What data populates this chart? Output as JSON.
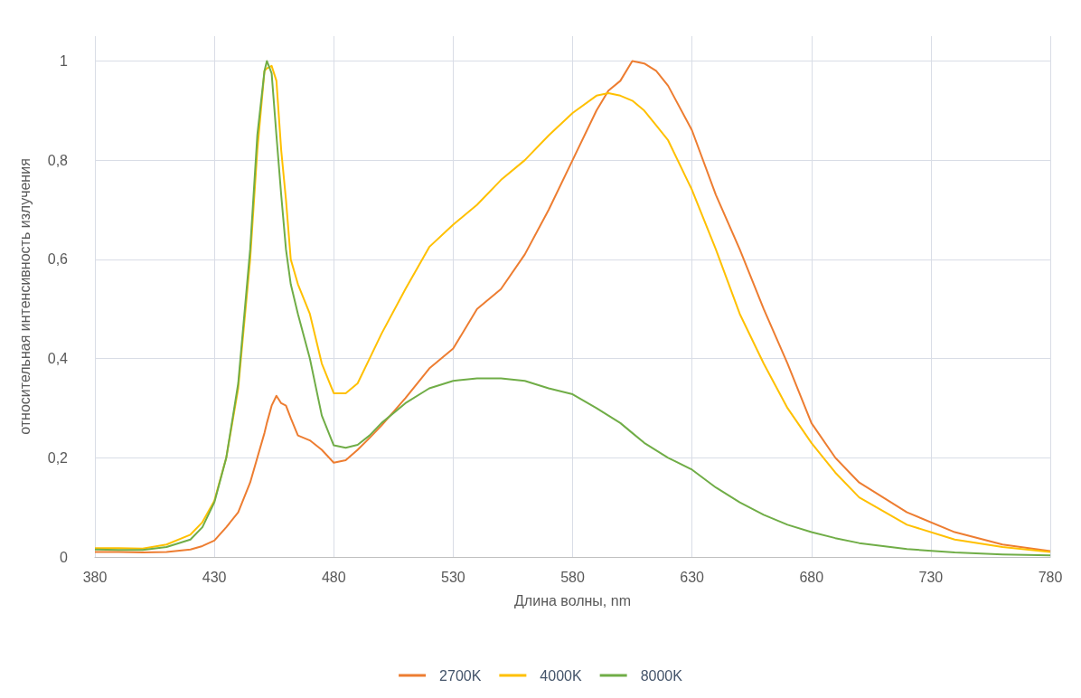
{
  "chart_data": {
    "type": "line",
    "xlabel": "Длина волны, nm",
    "ylabel": "относительная интенсивность излучения",
    "x": [
      380,
      390,
      400,
      410,
      420,
      425,
      430,
      435,
      440,
      445,
      448,
      451,
      452,
      454,
      456,
      458,
      460,
      462,
      465,
      470,
      475,
      480,
      485,
      490,
      495,
      500,
      510,
      520,
      530,
      540,
      550,
      560,
      570,
      580,
      590,
      595,
      600,
      605,
      610,
      615,
      620,
      630,
      640,
      650,
      660,
      670,
      680,
      690,
      700,
      720,
      740,
      760,
      780
    ],
    "series": [
      {
        "name": "2700K",
        "color": "#ed7d31",
        "values": [
          0.01,
          0.01,
          0.009,
          0.01,
          0.015,
          0.022,
          0.033,
          0.06,
          0.09,
          0.15,
          0.2,
          0.25,
          0.27,
          0.305,
          0.325,
          0.31,
          0.305,
          0.28,
          0.245,
          0.235,
          0.216,
          0.19,
          0.195,
          0.216,
          0.24,
          0.265,
          0.32,
          0.38,
          0.42,
          0.5,
          0.54,
          0.61,
          0.7,
          0.8,
          0.9,
          0.94,
          0.96,
          1.0,
          0.995,
          0.98,
          0.95,
          0.86,
          0.73,
          0.62,
          0.5,
          0.39,
          0.27,
          0.2,
          0.15,
          0.09,
          0.05,
          0.025,
          0.012
        ]
      },
      {
        "name": "4000K",
        "color": "#ffc000",
        "values": [
          0.018,
          0.018,
          0.017,
          0.025,
          0.045,
          0.07,
          0.113,
          0.2,
          0.34,
          0.6,
          0.82,
          0.98,
          0.985,
          0.99,
          0.96,
          0.82,
          0.72,
          0.6,
          0.55,
          0.49,
          0.39,
          0.33,
          0.33,
          0.35,
          0.4,
          0.45,
          0.54,
          0.625,
          0.67,
          0.71,
          0.76,
          0.8,
          0.85,
          0.895,
          0.93,
          0.935,
          0.93,
          0.92,
          0.9,
          0.87,
          0.84,
          0.74,
          0.62,
          0.49,
          0.39,
          0.3,
          0.23,
          0.17,
          0.12,
          0.065,
          0.035,
          0.02,
          0.01
        ]
      },
      {
        "name": "8000K",
        "color": "#70ad47",
        "values": [
          0.015,
          0.014,
          0.014,
          0.02,
          0.035,
          0.06,
          0.11,
          0.2,
          0.35,
          0.62,
          0.85,
          0.98,
          1.0,
          0.975,
          0.85,
          0.73,
          0.62,
          0.55,
          0.49,
          0.4,
          0.285,
          0.225,
          0.22,
          0.226,
          0.245,
          0.27,
          0.31,
          0.34,
          0.355,
          0.36,
          0.36,
          0.355,
          0.34,
          0.328,
          0.3,
          0.285,
          0.27,
          0.25,
          0.23,
          0.215,
          0.2,
          0.176,
          0.14,
          0.11,
          0.085,
          0.065,
          0.05,
          0.038,
          0.028,
          0.016,
          0.009,
          0.005,
          0.003
        ]
      }
    ],
    "xlim": [
      380,
      780
    ],
    "xticks": [
      380,
      430,
      480,
      530,
      580,
      630,
      680,
      730,
      780
    ],
    "ylim": [
      0,
      1.05
    ],
    "yticks": [
      0,
      {
        "value": 0.2,
        "label": "0,2"
      },
      {
        "value": 0.4,
        "label": "0,4"
      },
      {
        "value": 0.6,
        "label": "0,6"
      },
      {
        "value": 0.8,
        "label": "0,8"
      },
      1
    ],
    "grid": true,
    "legend": "bottom",
    "marker": "none",
    "line_style": "solid"
  }
}
